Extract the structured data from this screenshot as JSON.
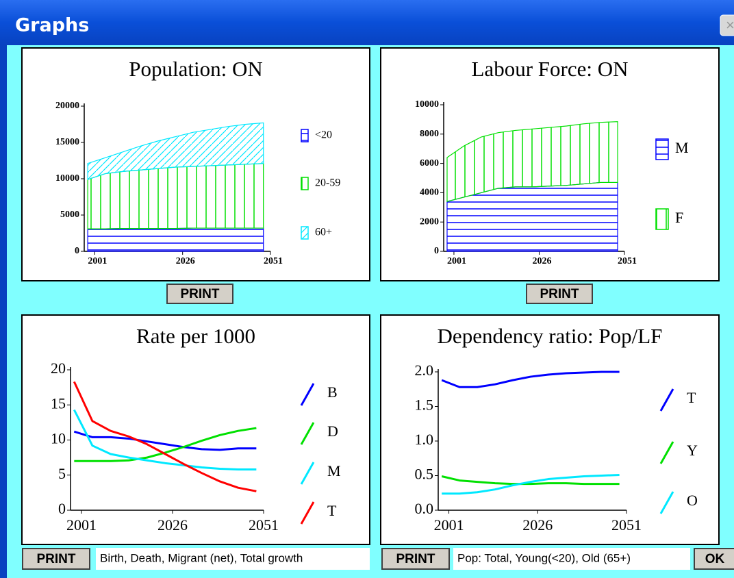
{
  "window": {
    "title": "Graphs",
    "close": "×"
  },
  "chart_data": [
    {
      "type": "area",
      "stacked": true,
      "title": "Population: ON",
      "x": [
        1999,
        2004,
        2009,
        2014,
        2019,
        2024,
        2029,
        2034,
        2039,
        2044,
        2049
      ],
      "xlim": [
        1998,
        2051
      ],
      "xticks": [
        2001,
        2026,
        2051
      ],
      "ylim": [
        0,
        20000
      ],
      "yticks": [
        0,
        5000,
        10000,
        15000,
        20000
      ],
      "series": [
        {
          "name": "<20",
          "color": "#0000ff",
          "hatch": "horizontal",
          "values": [
            3100,
            3100,
            3150,
            3150,
            3150,
            3150,
            3200,
            3200,
            3200,
            3200,
            3200
          ]
        },
        {
          "name": "20-59",
          "color": "#00e000",
          "hatch": "vertical",
          "values": [
            6800,
            7600,
            7850,
            8050,
            8250,
            8450,
            8500,
            8600,
            8700,
            8800,
            8900
          ]
        },
        {
          "name": "60+",
          "color": "#00e8ff",
          "hatch": "diagonal",
          "values": [
            2200,
            2200,
            2700,
            3300,
            3800,
            4200,
            4700,
            5000,
            5300,
            5500,
            5600
          ]
        }
      ]
    },
    {
      "type": "area",
      "stacked": true,
      "title": "Labour Force: ON",
      "x": [
        1999,
        2004,
        2009,
        2014,
        2019,
        2024,
        2029,
        2034,
        2039,
        2044,
        2049
      ],
      "xlim": [
        1998,
        2051
      ],
      "xticks": [
        2001,
        2026,
        2051
      ],
      "ylim": [
        0,
        10000
      ],
      "yticks": [
        0,
        2000,
        4000,
        6000,
        8000,
        10000
      ],
      "series": [
        {
          "name": "M",
          "color": "#0000ff",
          "hatch": "horizontal",
          "values": [
            3400,
            3700,
            4000,
            4300,
            4400,
            4400,
            4450,
            4500,
            4600,
            4700,
            4700
          ]
        },
        {
          "name": "F",
          "color": "#00e000",
          "hatch": "vertical",
          "values": [
            3000,
            3500,
            3800,
            3800,
            3850,
            3950,
            4000,
            4050,
            4100,
            4100,
            4150
          ]
        }
      ]
    },
    {
      "type": "line",
      "title": "Rate per 1000",
      "x": [
        1999,
        2004,
        2009,
        2014,
        2019,
        2024,
        2029,
        2034,
        2039,
        2044,
        2049
      ],
      "xlim": [
        1998,
        2051
      ],
      "xticks": [
        2001,
        2026,
        2051
      ],
      "ylim": [
        0,
        20
      ],
      "yticks": [
        0,
        5,
        10,
        15,
        20
      ],
      "series": [
        {
          "name": "B",
          "color": "#0000ff",
          "values": [
            11.2,
            10.4,
            10.4,
            10.2,
            9.8,
            9.4,
            9.0,
            8.7,
            8.6,
            8.8,
            8.8
          ]
        },
        {
          "name": "D",
          "color": "#00e000",
          "values": [
            7.0,
            7.0,
            7.0,
            7.1,
            7.5,
            8.2,
            9.0,
            9.9,
            10.7,
            11.3,
            11.7
          ]
        },
        {
          "name": "M",
          "color": "#00e8ff",
          "values": [
            14.3,
            9.2,
            8.0,
            7.5,
            7.1,
            6.7,
            6.4,
            6.1,
            5.9,
            5.8,
            5.8
          ]
        },
        {
          "name": "T",
          "color": "#ff0000",
          "values": [
            18.3,
            12.7,
            11.3,
            10.5,
            9.4,
            8.0,
            6.6,
            5.3,
            4.1,
            3.2,
            2.7
          ]
        }
      ]
    },
    {
      "type": "line",
      "title": "Dependency ratio: Pop/LF",
      "x": [
        1999,
        2004,
        2009,
        2014,
        2019,
        2024,
        2029,
        2034,
        2039,
        2044,
        2049
      ],
      "xlim": [
        1998,
        2051
      ],
      "xticks": [
        2001,
        2026,
        2051
      ],
      "ylim": [
        0,
        2
      ],
      "yticks": [
        {
          "value": 0,
          "label": "0.0"
        },
        0.5,
        {
          "value": 1,
          "label": "1.0"
        },
        1.5,
        {
          "value": 2,
          "label": "2.0"
        }
      ],
      "series": [
        {
          "name": "T",
          "color": "#0000ff",
          "values": [
            1.88,
            1.78,
            1.78,
            1.82,
            1.88,
            1.93,
            1.96,
            1.98,
            1.99,
            2.0,
            2.0
          ]
        },
        {
          "name": "Y",
          "color": "#00e000",
          "values": [
            0.49,
            0.43,
            0.41,
            0.39,
            0.38,
            0.38,
            0.39,
            0.39,
            0.38,
            0.38,
            0.38
          ]
        },
        {
          "name": "O",
          "color": "#00e8ff",
          "values": [
            0.24,
            0.24,
            0.26,
            0.3,
            0.36,
            0.41,
            0.45,
            0.47,
            0.49,
            0.5,
            0.51
          ]
        }
      ]
    }
  ],
  "buttons": {
    "print": [
      "PRINT",
      "PRINT",
      "PRINT",
      "PRINT"
    ],
    "ok": "OK"
  },
  "captions": [
    "Birth, Death, Migrant (net), Total growth",
    "Pop: Total, Young(<20), Old (65+)"
  ]
}
